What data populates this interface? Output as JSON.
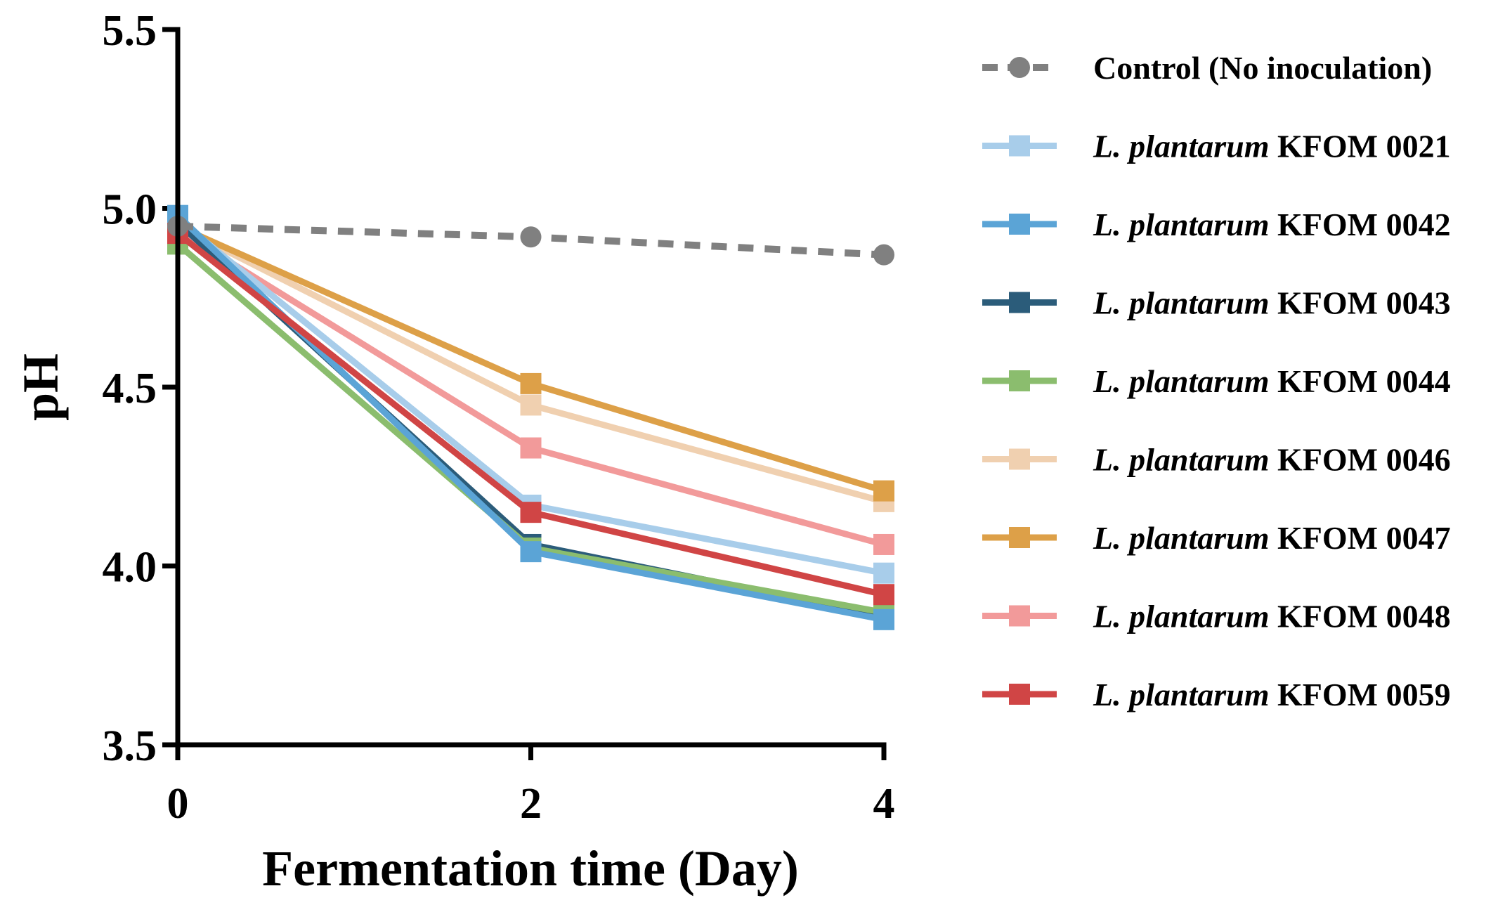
{
  "chart_data": {
    "type": "line",
    "title": "",
    "xlabel": "Fermentation time (Day)",
    "ylabel": "pH",
    "x": [
      0,
      2,
      4
    ],
    "x_tick_labels": [
      "0",
      "2",
      "4"
    ],
    "y_tick_labels": [
      "3.5",
      "4.0",
      "4.5",
      "5.0",
      "5.5"
    ],
    "y_ticks": [
      3.5,
      4.0,
      4.5,
      5.0,
      5.5
    ],
    "xlim": [
      0,
      4
    ],
    "ylim": [
      3.5,
      5.5
    ],
    "grid": false,
    "legend_position": "right",
    "series": [
      {
        "name": "Control (No inoculation)",
        "name_italic": "",
        "name_rest": "Control (No inoculation)",
        "values": [
          4.95,
          4.92,
          4.87
        ],
        "color": "#808080",
        "marker": "circle",
        "dashed": true
      },
      {
        "name": "L. plantarum KFOM 0021",
        "name_italic": "L. plantarum",
        "name_rest": " KFOM 0021",
        "values": [
          4.97,
          4.17,
          3.98
        ],
        "color": "#A8CDEA",
        "marker": "square",
        "dashed": false
      },
      {
        "name": "L. plantarum KFOM 0042",
        "name_italic": "L. plantarum",
        "name_rest": " KFOM 0042",
        "values": [
          4.98,
          4.04,
          3.85
        ],
        "color": "#5BA4D6",
        "marker": "square",
        "dashed": false
      },
      {
        "name": "L. plantarum KFOM 0043",
        "name_italic": "L. plantarum",
        "name_rest": " KFOM 0043",
        "values": [
          4.96,
          4.06,
          3.86
        ],
        "color": "#2B5C7A",
        "marker": "square",
        "dashed": false
      },
      {
        "name": "L. plantarum KFOM 0044",
        "name_italic": "L. plantarum",
        "name_rest": " KFOM 0044",
        "values": [
          4.9,
          4.05,
          3.87
        ],
        "color": "#8BBD6E",
        "marker": "square",
        "dashed": false
      },
      {
        "name": "L. plantarum KFOM 0046",
        "name_italic": "L. plantarum",
        "name_rest": " KFOM 0046",
        "values": [
          4.95,
          4.45,
          4.18
        ],
        "color": "#F0D0B0",
        "marker": "square",
        "dashed": false
      },
      {
        "name": "L. plantarum KFOM 0047",
        "name_italic": "L. plantarum",
        "name_rest": " KFOM 0047",
        "values": [
          4.95,
          4.51,
          4.21
        ],
        "color": "#DDA048",
        "marker": "square",
        "dashed": false
      },
      {
        "name": "L. plantarum KFOM 0048",
        "name_italic": "L. plantarum",
        "name_rest": " KFOM 0048",
        "values": [
          4.94,
          4.33,
          4.06
        ],
        "color": "#F29A9A",
        "marker": "square",
        "dashed": false
      },
      {
        "name": "L. plantarum KFOM 0059",
        "name_italic": "L. plantarum",
        "name_rest": " KFOM 0059",
        "values": [
          4.93,
          4.15,
          3.92
        ],
        "color": "#D04545",
        "marker": "square",
        "dashed": false
      }
    ]
  }
}
